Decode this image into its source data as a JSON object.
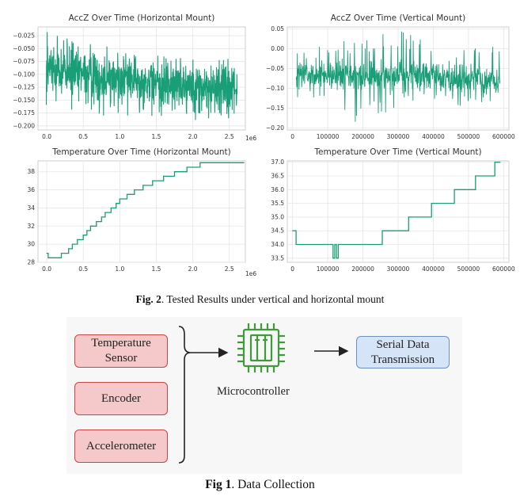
{
  "charts": {
    "acc_h": {
      "type": "line",
      "title": "AccZ Over Time (Horizontal Mount)",
      "xticks": [
        "0.0",
        "0.5",
        "1.0",
        "1.5",
        "2.0",
        "2.5"
      ],
      "yticks": [
        "−0.025",
        "−0.050",
        "−0.075",
        "−0.100",
        "−0.125",
        "−0.150",
        "−0.175",
        "−0.200"
      ],
      "offset_label": "1e6",
      "color": "#1a9e77"
    },
    "acc_v": {
      "type": "line",
      "title": "AccZ Over Time (Vertical Mount)",
      "xticks": [
        "0",
        "100000",
        "200000",
        "300000",
        "400000",
        "500000",
        "600000"
      ],
      "yticks": [
        "0.05",
        "0.00",
        "−0.05",
        "−0.10",
        "−0.15",
        "−0.20"
      ],
      "color": "#1a9e77"
    },
    "temp_h": {
      "type": "line",
      "title": "Temperature Over Time (Horizontal Mount)",
      "xticks": [
        "0.0",
        "0.5",
        "1.0",
        "1.5",
        "2.0",
        "2.5"
      ],
      "yticks": [
        "38",
        "36",
        "34",
        "32",
        "30",
        "28"
      ],
      "offset_label": "1e6",
      "color": "#1a9e77"
    },
    "temp_v": {
      "type": "line",
      "title": "Temperature Over Time (Vertical Mount)",
      "xticks": [
        "0",
        "100000",
        "200000",
        "300000",
        "400000",
        "500000",
        "600000"
      ],
      "yticks": [
        "37.0",
        "36.5",
        "36.0",
        "35.5",
        "35.0",
        "34.5",
        "34.0",
        "33.5"
      ],
      "color": "#1a9e77"
    }
  },
  "chart_data": [
    {
      "type": "line",
      "title": "AccZ Over Time (Horizontal Mount)",
      "xlabel": "",
      "ylabel": "",
      "x_scale": "1e6",
      "xlim": [
        -0.12,
        2.72
      ],
      "ylim": [
        -0.208,
        -0.008
      ],
      "series": [
        {
          "name": "AccZ",
          "noise_profile": {
            "x": [
              0.0,
              0.3,
              0.6,
              1.0,
              1.4,
              1.8,
              2.2,
              2.7
            ],
            "y_mean": [
              -0.09,
              -0.095,
              -0.1,
              -0.108,
              -0.115,
              -0.12,
              -0.125,
              -0.128
            ],
            "y_low": [
              -0.16,
              -0.17,
              -0.18,
              -0.185,
              -0.19,
              -0.195,
              -0.195,
              -0.195
            ],
            "y_high": [
              -0.015,
              -0.03,
              -0.04,
              -0.05,
              -0.06,
              -0.065,
              -0.07,
              -0.07
            ]
          }
        }
      ]
    },
    {
      "type": "line",
      "title": "AccZ Over Time (Vertical Mount)",
      "xlabel": "",
      "ylabel": "",
      "xlim": [
        -15000,
        615000
      ],
      "ylim": [
        -0.205,
        0.055
      ],
      "series": [
        {
          "name": "AccZ",
          "noise_profile": {
            "x": [
              0,
              100000,
              200000,
              300000,
              400000,
              500000,
              600000
            ],
            "y_mean": [
              -0.07,
              -0.068,
              -0.072,
              -0.065,
              -0.07,
              -0.075,
              -0.08
            ],
            "y_low": [
              -0.14,
              -0.15,
              -0.195,
              -0.15,
              -0.14,
              -0.15,
              -0.14
            ],
            "y_high": [
              0.01,
              0.02,
              0.03,
              0.05,
              0.03,
              0.02,
              0.01
            ]
          }
        }
      ]
    },
    {
      "type": "line",
      "title": "Temperature Over Time (Horizontal Mount)",
      "xlabel": "",
      "ylabel": "",
      "x_scale": "1e6",
      "xlim": [
        -0.12,
        2.72
      ],
      "ylim": [
        28,
        39.2
      ],
      "series": [
        {
          "name": "Temperature",
          "x": [
            0.0,
            0.02,
            0.2,
            0.3,
            0.35,
            0.42,
            0.5,
            0.55,
            0.6,
            0.68,
            0.75,
            0.8,
            0.88,
            0.95,
            1.0,
            1.1,
            1.2,
            1.32,
            1.45,
            1.6,
            1.75,
            1.92,
            2.1,
            2.3,
            2.5,
            2.7
          ],
          "y": [
            29.0,
            28.5,
            29.0,
            29.5,
            30.0,
            30.5,
            31.0,
            31.5,
            32.0,
            32.5,
            33.0,
            33.5,
            34.0,
            34.5,
            35.0,
            35.5,
            36.0,
            36.5,
            37.0,
            37.5,
            38.0,
            38.5,
            39.0,
            39.0,
            39.0,
            39.0
          ]
        }
      ]
    },
    {
      "type": "line",
      "title": "Temperature Over Time (Vertical Mount)",
      "xlabel": "",
      "ylabel": "",
      "xlim": [
        -15000,
        615000
      ],
      "ylim": [
        33.35,
        37.05
      ],
      "series": [
        {
          "name": "Temperature",
          "x": [
            0,
            10000,
            110000,
            115000,
            120000,
            125000,
            130000,
            255000,
            330000,
            395000,
            460000,
            520000,
            575000,
            590000
          ],
          "y": [
            34.5,
            34.0,
            34.0,
            33.5,
            34.0,
            33.5,
            34.0,
            34.5,
            35.0,
            35.5,
            36.0,
            36.5,
            37.0,
            37.0
          ]
        }
      ]
    }
  ],
  "captions": {
    "fig2_label": "Fig. 2",
    "fig2_text": ". Tested Results under vertical and horizontal mount",
    "fig1_label": "Fig 1",
    "fig1_text": ". Data Collection"
  },
  "diagram": {
    "inputs": [
      {
        "label": "Temperature Sensor"
      },
      {
        "label": "Encoder"
      },
      {
        "label": "Accelerometer"
      }
    ],
    "processor_label": "Microcontroller",
    "processor_icon": "microchip-icon",
    "output_label": "Serial Data Transmission",
    "colors": {
      "input_fill": "#f5c9c9",
      "input_border": "#c84545",
      "output_fill": "#d6e4f7",
      "output_border": "#6d8fc4",
      "chip": "#3f9a3a"
    }
  }
}
